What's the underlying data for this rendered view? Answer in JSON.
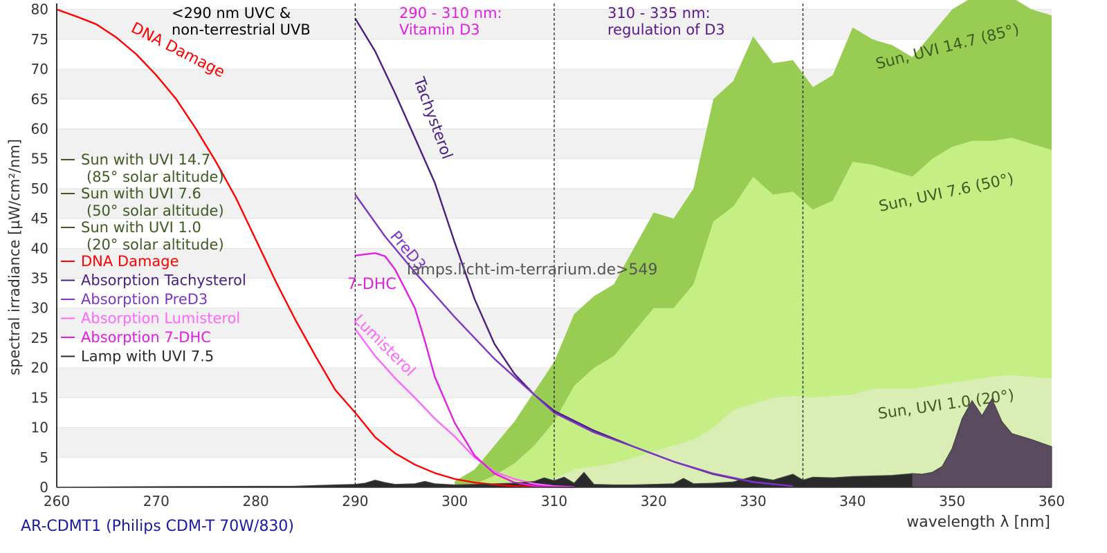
{
  "chart_data": {
    "type": "area",
    "xlabel": "wavelength λ [nm]",
    "ylabel": "spectral irradiance [µW/cm²/nm]",
    "xlim": [
      260,
      360
    ],
    "ylim": [
      0,
      81
    ],
    "xticks": [
      260,
      270,
      280,
      290,
      300,
      310,
      320,
      330,
      340,
      350,
      360
    ],
    "yticks": [
      0,
      5,
      10,
      15,
      20,
      25,
      30,
      35,
      40,
      45,
      50,
      55,
      60,
      65,
      70,
      75,
      80
    ],
    "grid": "alternating horizontal bands",
    "legend_position": "left",
    "footer": "AR-CDMT1 (Philips CDM-T 70W/830)",
    "watermark": "lamps.licht-im-terrarium.de>549",
    "vlines": [
      290,
      310,
      335
    ],
    "region_labels": [
      {
        "lines": [
          "<290 nm UVC &",
          "non-terrestrial UVB"
        ],
        "color": "#000000"
      },
      {
        "lines": [
          "290 - 310 nm:",
          "Vitamin D3"
        ],
        "color": "#e020e0"
      },
      {
        "lines": [
          "310 - 335 nm:",
          "regulation of D3"
        ],
        "color": "#5a1a8a"
      }
    ],
    "series": [
      {
        "name": "Sun with UVI 14.7",
        "legend_note": "(85° solar altitude)",
        "kind": "area",
        "color": "#99cc52",
        "label": "Sun, UVI 14.7 (85°)",
        "x": [
          300,
          302,
          304,
          306,
          308,
          310,
          312,
          314,
          316,
          318,
          320,
          322,
          324,
          326,
          328,
          330,
          332,
          334,
          336,
          338,
          340,
          342,
          344,
          346,
          348,
          350,
          352,
          354,
          356,
          358,
          360
        ],
        "y": [
          1,
          3,
          7,
          11,
          16,
          21,
          29,
          32,
          34,
          40,
          46,
          45,
          50,
          65,
          68,
          75.5,
          71,
          71.5,
          67,
          69,
          77,
          75,
          74,
          72,
          76,
          80,
          82,
          84,
          82,
          80,
          79
        ]
      },
      {
        "name": "Sun with UVI 7.6",
        "legend_note": "(50° solar altitude)",
        "kind": "area",
        "color": "#c5ef85",
        "label": "Sun, UVI 7.6 (50°)",
        "x": [
          302,
          304,
          306,
          308,
          310,
          312,
          314,
          316,
          318,
          320,
          322,
          324,
          326,
          328,
          330,
          332,
          334,
          336,
          338,
          340,
          342,
          344,
          346,
          348,
          350,
          352,
          354,
          356,
          358,
          360
        ],
        "y": [
          0.5,
          2,
          4,
          7,
          11,
          17,
          20,
          22,
          26,
          30,
          30,
          34,
          44.5,
          47,
          52,
          49,
          49.5,
          46.5,
          48,
          54.5,
          54,
          53,
          52,
          55,
          57,
          58,
          58,
          58.5,
          57.5,
          56.5
        ]
      },
      {
        "name": "Sun with UVI 1.0",
        "legend_note": "(20° solar altitude)",
        "kind": "area",
        "color": "#d9edb4",
        "label": "Sun, UVI 1.0 (20°)",
        "x": [
          305,
          308,
          310,
          312,
          314,
          316,
          318,
          320,
          322,
          324,
          326,
          328,
          330,
          332,
          334,
          336,
          338,
          340,
          342,
          344,
          346,
          348,
          350,
          352,
          354,
          356,
          358,
          360
        ],
        "y": [
          0.2,
          0.8,
          1.5,
          3,
          3.5,
          4,
          5,
          6,
          7,
          8,
          10,
          13,
          14,
          15,
          15.3,
          15,
          15.3,
          15.5,
          16.5,
          16.5,
          16.5,
          17,
          17.5,
          18,
          18.5,
          18.8,
          18.5,
          18.2
        ]
      },
      {
        "name": "DNA Damage",
        "kind": "line",
        "color": "#ff0000",
        "label": "DNA Damage",
        "x": [
          260,
          262,
          264,
          266,
          268,
          270,
          272,
          274,
          276,
          278,
          280,
          282,
          284,
          286,
          288,
          290,
          292,
          294,
          296,
          298,
          300,
          302,
          304,
          306,
          308,
          310
        ],
        "y": [
          80,
          78.8,
          77.5,
          75.3,
          72.5,
          69,
          65,
          60,
          54.5,
          48.5,
          41.5,
          34.5,
          28,
          22,
          16.3,
          12.5,
          8.4,
          5.7,
          3.8,
          2.4,
          1.4,
          0.8,
          0.45,
          0.2,
          0.1,
          0.05
        ]
      },
      {
        "name": "Absorption Tachysterol",
        "kind": "line",
        "color": "#4b1e82",
        "label": "Tachysterol",
        "x": [
          290,
          292,
          294,
          296,
          298,
          300,
          302,
          304,
          306,
          308,
          310,
          314,
          318,
          322,
          326,
          330,
          334
        ],
        "y": [
          78.5,
          73,
          66,
          58.5,
          51,
          41,
          31.5,
          24,
          19,
          15.5,
          12.8,
          9.5,
          6.8,
          4.3,
          2.2,
          0.8,
          0.2
        ]
      },
      {
        "name": "Absorption PreD3",
        "kind": "line",
        "color": "#7b35c7",
        "label": "PreD3",
        "x": [
          290,
          293,
          296,
          300,
          304,
          308,
          310,
          314,
          318,
          322,
          326,
          330,
          334
        ],
        "y": [
          49,
          42,
          36,
          28.5,
          21.5,
          15.5,
          12.5,
          9.2,
          6.8,
          4.3,
          2.3,
          0.9,
          0.2
        ]
      },
      {
        "name": "Absorption Lumisterol",
        "kind": "line",
        "color": "#ff66ff",
        "label": "Lumisterol",
        "x": [
          290,
          292,
          294,
          296,
          298,
          300,
          302,
          304,
          306,
          308,
          310,
          312
        ],
        "y": [
          26.5,
          22,
          18.3,
          15,
          11.5,
          8.5,
          5,
          2.6,
          1.4,
          0.6,
          0.2,
          0.05
        ]
      },
      {
        "name": "Absorption 7-DHC",
        "kind": "line",
        "color": "#e020e0",
        "label": "7-DHC",
        "x": [
          290,
          292,
          293,
          294,
          296,
          297,
          298,
          300,
          302,
          304,
          306,
          308,
          310,
          312
        ],
        "y": [
          38.8,
          39.2,
          38.7,
          36.5,
          30,
          24.5,
          18.5,
          10.8,
          5.3,
          2.3,
          0.8,
          0.25,
          0.07,
          0.02
        ]
      },
      {
        "name": "Lamp with UVI 7.5",
        "kind": "area",
        "color": "#2a2a2a",
        "label": "",
        "x": [
          260,
          268,
          276,
          284,
          288,
          290,
          291,
          292,
          293,
          294,
          296,
          297,
          298,
          300,
          302,
          304,
          306,
          308,
          309,
          310,
          311,
          312,
          313,
          314,
          316,
          318,
          320,
          322,
          323,
          324,
          326,
          328,
          330,
          332,
          334,
          335,
          336,
          338,
          340,
          344,
          346,
          347,
          348,
          349,
          350,
          351,
          352,
          353,
          354,
          355,
          356,
          358,
          360
        ],
        "y": [
          0,
          0.1,
          0.15,
          0.2,
          0.4,
          0.5,
          0.7,
          1.2,
          0.8,
          0.5,
          0.6,
          1,
          0.6,
          0.4,
          0.5,
          0.6,
          0.7,
          1,
          1.6,
          1.1,
          1.7,
          0.7,
          2.5,
          0.5,
          0.4,
          0.4,
          0.5,
          0.6,
          1.5,
          0.6,
          0.7,
          0.9,
          1.8,
          1.2,
          2.2,
          1.2,
          1.7,
          1.6,
          1.8,
          2,
          2.3,
          2.2,
          2.5,
          3.5,
          6.5,
          11.5,
          14.5,
          12,
          14.8,
          11,
          9,
          8,
          6.8
        ]
      }
    ]
  }
}
